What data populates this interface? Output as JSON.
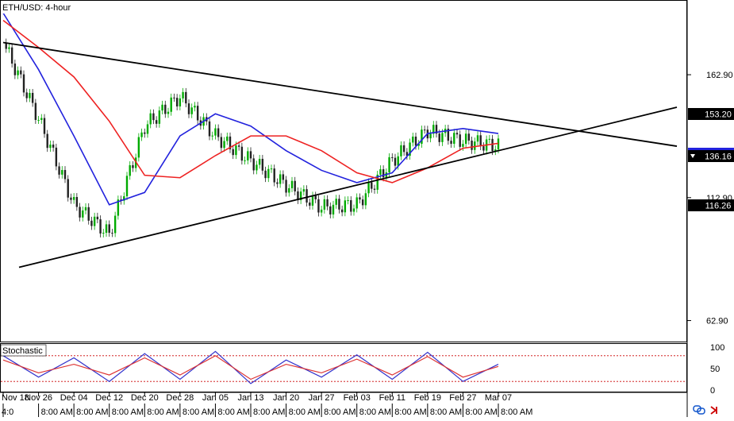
{
  "chart_title": "ETH/USD: 4-hour",
  "price_levels": {
    "top": "153.20",
    "mid": "136.16",
    "bottom": "116.26"
  },
  "price_axis": [
    {
      "value": 162.9,
      "label": "162.90"
    },
    {
      "value": 112.9,
      "label": "112.90"
    },
    {
      "value": 62.9,
      "label": "62.90"
    }
  ],
  "indicator": {
    "name": "Stochastic",
    "levels": [
      100,
      50,
      0
    ],
    "level_labels": [
      "100",
      "50",
      "0"
    ],
    "overbought": 80,
    "oversold": 20
  },
  "date_labels": [
    "Nov 18",
    "Nov 26",
    "Dec 04",
    "Dec 12",
    "Dec 20",
    "Dec 28",
    "Jan 05",
    "Jan 13",
    "Jan 20",
    "Jan 27",
    "Feb 03",
    "Feb 11",
    "Feb 19",
    "Feb 27",
    "Mar 07"
  ],
  "time_labels": [
    "4:0",
    "8:00 AM",
    "8:00 AM",
    "8:00 AM",
    "8:00 AM",
    "8:00 AM",
    "8:00 AM",
    "8:00 AM",
    "8:00 AM",
    "8:00 AM",
    "8:00 AM",
    "8:00 AM",
    "8:00 AM",
    "8:00 AM",
    "8:00 AM"
  ],
  "colors": {
    "bull": "#00aa00",
    "bear": "#222222",
    "sma_fast": "#2222dd",
    "sma_slow": "#ee2222",
    "trendline": "#000000",
    "stoch_k": "#3333cc",
    "stoch_d": "#dd3333",
    "level_bg": "#000000",
    "dashed": "#cc0000"
  },
  "chart_data": {
    "type": "line",
    "title": "ETH/USD: 4-hour",
    "x": [
      "Nov 18",
      "Nov 26",
      "Dec 04",
      "Dec 12",
      "Dec 20",
      "Dec 28",
      "Jan 05",
      "Jan 13",
      "Jan 20",
      "Jan 27",
      "Feb 03",
      "Feb 11",
      "Feb 19",
      "Feb 27",
      "Mar 07"
    ],
    "ylim": [
      55,
      192
    ],
    "series": [
      {
        "values": [
          176,
          145,
          110,
          98,
          142,
          154,
          138,
          128,
          118,
          109,
          110,
          128,
          140,
          136,
          134
        ]
      },
      {
        "values": [
          188,
          165,
          138,
          110,
          115,
          138,
          147,
          142,
          132,
          124,
          119,
          123,
          139,
          141,
          139
        ]
      },
      {
        "values": [
          185,
          174,
          162,
          144,
          122,
          121,
          130,
          138,
          138,
          132,
          123,
          119,
          125,
          133,
          135
        ]
      }
    ],
    "trendlines": [
      {
        "from": [
          "Nov 18",
          176
        ],
        "to": [
          "Mar 07",
          145
        ]
      },
      {
        "from": [
          "Nov 18",
          83
        ],
        "to": [
          "Mar 07",
          132
        ]
      }
    ],
    "stochastic": {
      "k": [
        80,
        30,
        75,
        20,
        85,
        25,
        90,
        15,
        70,
        30,
        82,
        25,
        88,
        20,
        60
      ],
      "d": [
        70,
        40,
        60,
        35,
        75,
        35,
        80,
        25,
        60,
        40,
        72,
        35,
        78,
        30,
        55
      ]
    }
  }
}
